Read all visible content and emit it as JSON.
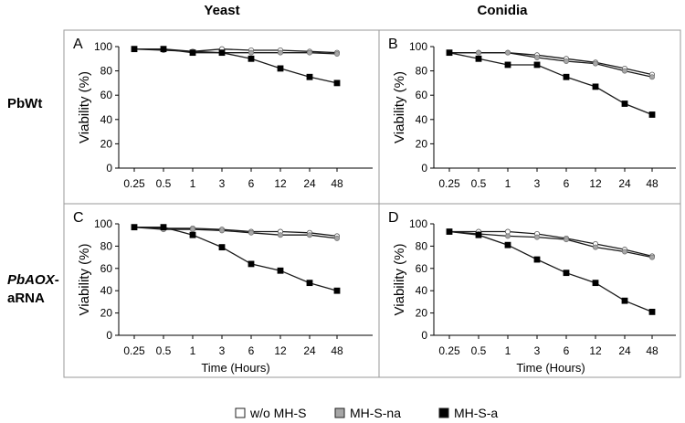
{
  "figure": {
    "column_headers": [
      "Yeast",
      "Conidia"
    ],
    "row_labels": [
      {
        "parts": [
          {
            "text": "PbWt",
            "italic": false
          }
        ]
      },
      {
        "parts": [
          {
            "text": "PbAOX",
            "italic": true
          },
          {
            "text": "-",
            "italic": false
          }
        ],
        "line2": "aRNA"
      }
    ],
    "legend": [
      {
        "label": "w/o MH-S",
        "color": "#ffffff"
      },
      {
        "label": "MH-S-na",
        "color": "#a6a6a6"
      },
      {
        "label": "MH-S-a",
        "color": "#000000"
      }
    ]
  },
  "chart_data": [
    {
      "panel": "A",
      "type": "line",
      "x": [
        "0.25",
        "0.5",
        "1",
        "3",
        "6",
        "12",
        "24",
        "48"
      ],
      "ylabel": "Viability (%)",
      "xlabel": "",
      "ylim": [
        0,
        100
      ],
      "yticks": [
        0,
        20,
        40,
        60,
        80,
        100
      ],
      "grid": false,
      "series": [
        {
          "name": "w/o MH-S",
          "color": "#ffffff",
          "values": [
            98,
            98,
            96,
            98,
            97,
            97,
            96,
            95
          ]
        },
        {
          "name": "MH-S-na",
          "color": "#a6a6a6",
          "values": [
            98,
            97,
            96,
            95,
            95,
            95,
            95,
            94
          ]
        },
        {
          "name": "MH-S-a",
          "color": "#000000",
          "values": [
            98,
            98,
            95,
            95,
            90,
            82,
            75,
            70
          ]
        }
      ]
    },
    {
      "panel": "B",
      "type": "line",
      "x": [
        "0.25",
        "0.5",
        "1",
        "3",
        "6",
        "12",
        "24",
        "48"
      ],
      "ylabel": "Viability (%)",
      "xlabel": "",
      "ylim": [
        0,
        100
      ],
      "yticks": [
        0,
        20,
        40,
        60,
        80,
        100
      ],
      "grid": false,
      "series": [
        {
          "name": "w/o MH-S",
          "color": "#ffffff",
          "values": [
            95,
            95,
            95,
            93,
            90,
            87,
            82,
            77
          ]
        },
        {
          "name": "MH-S-na",
          "color": "#a6a6a6",
          "values": [
            95,
            95,
            95,
            91,
            88,
            86,
            80,
            75
          ]
        },
        {
          "name": "MH-S-a",
          "color": "#000000",
          "values": [
            95,
            90,
            85,
            85,
            75,
            67,
            53,
            44
          ]
        }
      ]
    },
    {
      "panel": "C",
      "type": "line",
      "x": [
        "0.25",
        "0.5",
        "1",
        "3",
        "6",
        "12",
        "24",
        "48"
      ],
      "ylabel": "Viability (%)",
      "xlabel": "Time (Hours)",
      "ylim": [
        0,
        100
      ],
      "yticks": [
        0,
        20,
        40,
        60,
        80,
        100
      ],
      "grid": false,
      "series": [
        {
          "name": "w/o MH-S",
          "color": "#ffffff",
          "values": [
            97,
            96,
            96,
            95,
            93,
            93,
            92,
            89
          ]
        },
        {
          "name": "MH-S-na",
          "color": "#a6a6a6",
          "values": [
            97,
            95,
            95,
            94,
            92,
            90,
            90,
            87
          ]
        },
        {
          "name": "MH-S-a",
          "color": "#000000",
          "values": [
            97,
            97,
            90,
            79,
            64,
            58,
            47,
            40
          ]
        }
      ]
    },
    {
      "panel": "D",
      "type": "line",
      "x": [
        "0.25",
        "0.5",
        "1",
        "3",
        "6",
        "12",
        "24",
        "48"
      ],
      "ylabel": "Viability (%)",
      "xlabel": "Time (Hours)",
      "ylim": [
        0,
        100
      ],
      "yticks": [
        0,
        20,
        40,
        60,
        80,
        100
      ],
      "grid": false,
      "series": [
        {
          "name": "w/o MH-S",
          "color": "#ffffff",
          "values": [
            93,
            93,
            93,
            91,
            87,
            82,
            77,
            71
          ]
        },
        {
          "name": "MH-S-na",
          "color": "#a6a6a6",
          "values": [
            93,
            91,
            89,
            88,
            86,
            79,
            75,
            70
          ]
        },
        {
          "name": "MH-S-a",
          "color": "#000000",
          "values": [
            93,
            90,
            81,
            68,
            56,
            47,
            31,
            21
          ]
        }
      ]
    }
  ]
}
